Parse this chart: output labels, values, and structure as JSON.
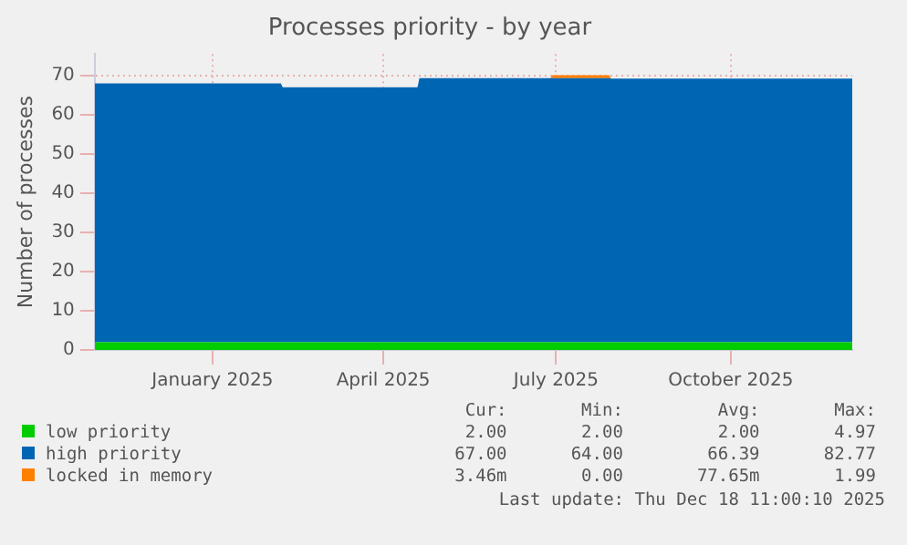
{
  "chart_data": {
    "type": "area",
    "title": "Processes priority - by year",
    "ylabel": "Number of processes",
    "stacked": true,
    "x": [
      "2024-11-14",
      "2025-02-20",
      "2025-02-21",
      "2025-05-03",
      "2025-05-04",
      "2025-07-12",
      "2025-07-13",
      "2025-08-12",
      "2025-08-13",
      "2025-12-18"
    ],
    "series": [
      {
        "name": "low priority",
        "color": "#00cc00",
        "values": [
          2,
          2,
          2,
          2,
          2,
          2,
          2,
          2,
          2,
          2
        ]
      },
      {
        "name": "high priority",
        "color": "#0066b3",
        "values": [
          66,
          66,
          65,
          65,
          67.3,
          67.3,
          67.3,
          67.3,
          67.2,
          67.2
        ]
      },
      {
        "name": "locked in memory",
        "color": "#ff8000",
        "values": [
          0,
          0,
          0,
          0,
          0,
          0,
          0.8,
          0.8,
          0,
          0
        ]
      }
    ],
    "xlim": [
      "2024-11-14",
      "2025-12-18"
    ],
    "xticks": [
      {
        "value": "2025-01-15",
        "label": "January 2025"
      },
      {
        "value": "2025-04-15",
        "label": "April 2025"
      },
      {
        "value": "2025-07-15",
        "label": "July 2025"
      },
      {
        "value": "2025-10-15",
        "label": "October 2025"
      }
    ],
    "ylim": [
      0,
      75.5
    ],
    "yticks": [
      0,
      10,
      20,
      30,
      40,
      50,
      60,
      70
    ],
    "grid": true,
    "legend": "bottom",
    "annotations": [
      "Cur:",
      "Min:",
      "Avg:",
      "Max:",
      "2.00",
      "2.00",
      "2.00",
      "4.97",
      "67.00",
      "64.00",
      "66.39",
      "82.77",
      "3.46m",
      "0.00",
      "77.65m",
      "1.99",
      "Last update: Thu Dec 18 11:00:10 2025"
    ]
  }
}
